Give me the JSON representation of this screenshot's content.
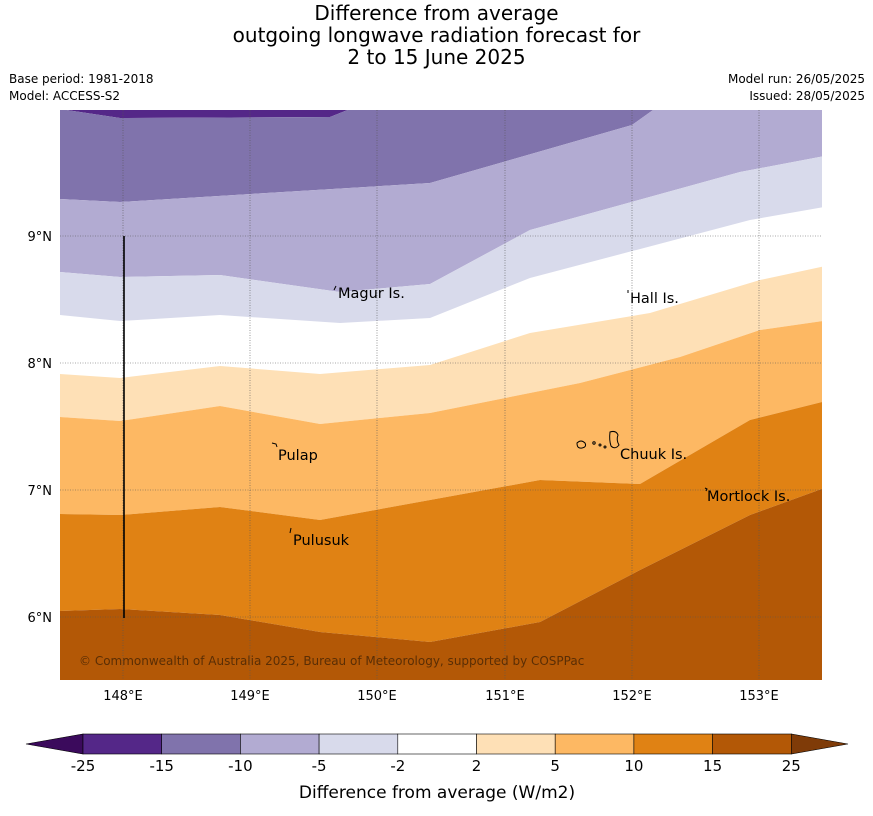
{
  "title": {
    "line1": "Difference from average",
    "line2": "outgoing longwave radiation forecast for",
    "line3": "2 to 15 June 2025"
  },
  "meta": {
    "base_period": "Base period: 1981-2018",
    "model": "Model: ACCESS-S2",
    "model_run": "Model run: 26/05/2025",
    "issued": "Issued: 28/05/2025"
  },
  "map": {
    "lat_ticks": [
      "9°N",
      "8°N",
      "7°N",
      "6°N"
    ],
    "lon_ticks": [
      "148°E",
      "149°E",
      "150°E",
      "151°E",
      "152°E",
      "153°E"
    ],
    "places": [
      "Magur Is.",
      "Hall Is.",
      "Pulap",
      "Chuuk Is.",
      "Mortlock Is.",
      "Pulusuk"
    ],
    "copyright": "© Commonwealth of Australia 2025, Bureau of Meteorology, supported by COSPPac"
  },
  "colorbar": {
    "tick_labels": [
      "-25",
      "-15",
      "-10",
      "-5",
      "-2",
      "2",
      "5",
      "10",
      "15",
      "25"
    ],
    "label": "Difference from average (W/m2)",
    "colors": [
      "#3b0a5c",
      "#542788",
      "#8073ac",
      "#b2abd2",
      "#d8daeb",
      "#ffffff",
      "#fee0b6",
      "#fdb863",
      "#e08214",
      "#b35806",
      "#7f3b08"
    ]
  }
}
